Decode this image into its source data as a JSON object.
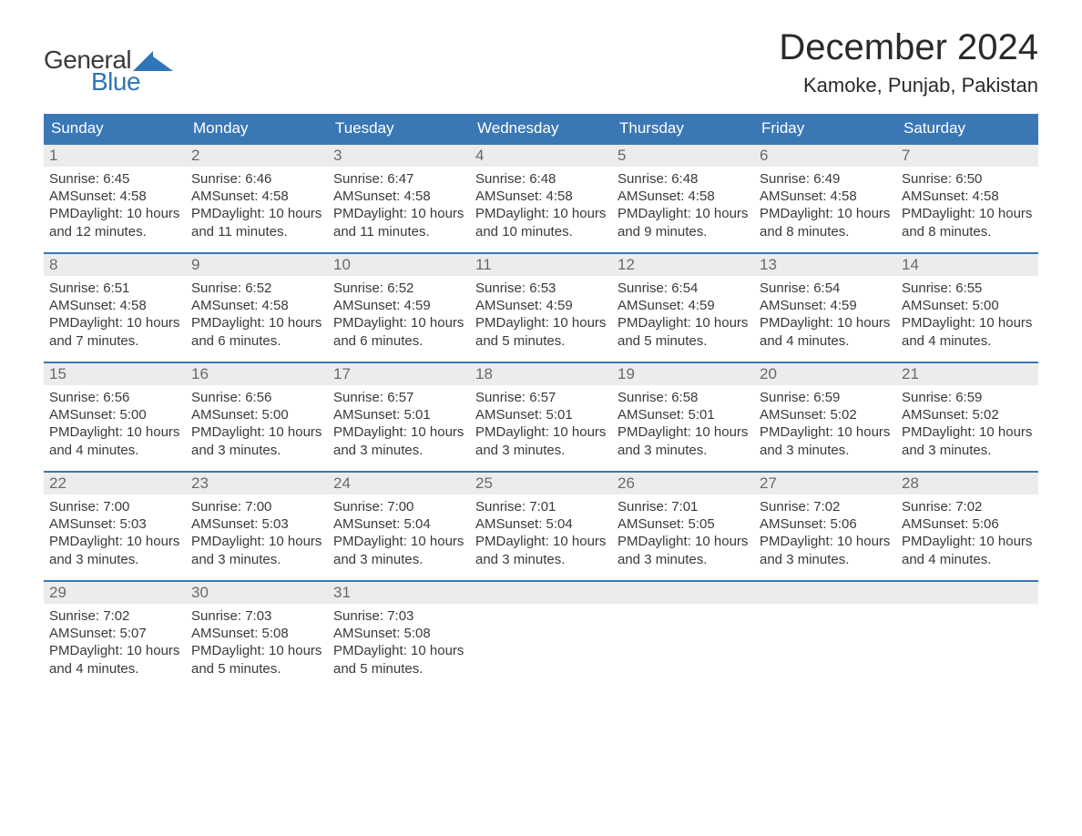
{
  "colors": {
    "header_bg": "#3a78b5",
    "header_fg": "#ffffff",
    "daynum_bg": "#ececec",
    "daynum_fg": "#6a6a6a",
    "text": "#3a3a3a",
    "week_border": "#3a78b5",
    "logo_blue": "#2f76b8",
    "background": "#ffffff"
  },
  "typography": {
    "month_title_size": 40,
    "location_size": 22,
    "day_header_size": 17,
    "daynum_size": 17,
    "body_size": 15,
    "logo_size": 28
  },
  "logo": {
    "line1": "General",
    "line2": "Blue"
  },
  "title": "December 2024",
  "location": "Kamoke, Punjab, Pakistan",
  "day_names": [
    "Sunday",
    "Monday",
    "Tuesday",
    "Wednesday",
    "Thursday",
    "Friday",
    "Saturday"
  ],
  "weeks": [
    [
      {
        "n": "1",
        "sr": "Sunrise: 6:45 AM",
        "ss": "Sunset: 4:58 PM",
        "dl": "Daylight: 10 hours and 12 minutes."
      },
      {
        "n": "2",
        "sr": "Sunrise: 6:46 AM",
        "ss": "Sunset: 4:58 PM",
        "dl": "Daylight: 10 hours and 11 minutes."
      },
      {
        "n": "3",
        "sr": "Sunrise: 6:47 AM",
        "ss": "Sunset: 4:58 PM",
        "dl": "Daylight: 10 hours and 11 minutes."
      },
      {
        "n": "4",
        "sr": "Sunrise: 6:48 AM",
        "ss": "Sunset: 4:58 PM",
        "dl": "Daylight: 10 hours and 10 minutes."
      },
      {
        "n": "5",
        "sr": "Sunrise: 6:48 AM",
        "ss": "Sunset: 4:58 PM",
        "dl": "Daylight: 10 hours and 9 minutes."
      },
      {
        "n": "6",
        "sr": "Sunrise: 6:49 AM",
        "ss": "Sunset: 4:58 PM",
        "dl": "Daylight: 10 hours and 8 minutes."
      },
      {
        "n": "7",
        "sr": "Sunrise: 6:50 AM",
        "ss": "Sunset: 4:58 PM",
        "dl": "Daylight: 10 hours and 8 minutes."
      }
    ],
    [
      {
        "n": "8",
        "sr": "Sunrise: 6:51 AM",
        "ss": "Sunset: 4:58 PM",
        "dl": "Daylight: 10 hours and 7 minutes."
      },
      {
        "n": "9",
        "sr": "Sunrise: 6:52 AM",
        "ss": "Sunset: 4:58 PM",
        "dl": "Daylight: 10 hours and 6 minutes."
      },
      {
        "n": "10",
        "sr": "Sunrise: 6:52 AM",
        "ss": "Sunset: 4:59 PM",
        "dl": "Daylight: 10 hours and 6 minutes."
      },
      {
        "n": "11",
        "sr": "Sunrise: 6:53 AM",
        "ss": "Sunset: 4:59 PM",
        "dl": "Daylight: 10 hours and 5 minutes."
      },
      {
        "n": "12",
        "sr": "Sunrise: 6:54 AM",
        "ss": "Sunset: 4:59 PM",
        "dl": "Daylight: 10 hours and 5 minutes."
      },
      {
        "n": "13",
        "sr": "Sunrise: 6:54 AM",
        "ss": "Sunset: 4:59 PM",
        "dl": "Daylight: 10 hours and 4 minutes."
      },
      {
        "n": "14",
        "sr": "Sunrise: 6:55 AM",
        "ss": "Sunset: 5:00 PM",
        "dl": "Daylight: 10 hours and 4 minutes."
      }
    ],
    [
      {
        "n": "15",
        "sr": "Sunrise: 6:56 AM",
        "ss": "Sunset: 5:00 PM",
        "dl": "Daylight: 10 hours and 4 minutes."
      },
      {
        "n": "16",
        "sr": "Sunrise: 6:56 AM",
        "ss": "Sunset: 5:00 PM",
        "dl": "Daylight: 10 hours and 3 minutes."
      },
      {
        "n": "17",
        "sr": "Sunrise: 6:57 AM",
        "ss": "Sunset: 5:01 PM",
        "dl": "Daylight: 10 hours and 3 minutes."
      },
      {
        "n": "18",
        "sr": "Sunrise: 6:57 AM",
        "ss": "Sunset: 5:01 PM",
        "dl": "Daylight: 10 hours and 3 minutes."
      },
      {
        "n": "19",
        "sr": "Sunrise: 6:58 AM",
        "ss": "Sunset: 5:01 PM",
        "dl": "Daylight: 10 hours and 3 minutes."
      },
      {
        "n": "20",
        "sr": "Sunrise: 6:59 AM",
        "ss": "Sunset: 5:02 PM",
        "dl": "Daylight: 10 hours and 3 minutes."
      },
      {
        "n": "21",
        "sr": "Sunrise: 6:59 AM",
        "ss": "Sunset: 5:02 PM",
        "dl": "Daylight: 10 hours and 3 minutes."
      }
    ],
    [
      {
        "n": "22",
        "sr": "Sunrise: 7:00 AM",
        "ss": "Sunset: 5:03 PM",
        "dl": "Daylight: 10 hours and 3 minutes."
      },
      {
        "n": "23",
        "sr": "Sunrise: 7:00 AM",
        "ss": "Sunset: 5:03 PM",
        "dl": "Daylight: 10 hours and 3 minutes."
      },
      {
        "n": "24",
        "sr": "Sunrise: 7:00 AM",
        "ss": "Sunset: 5:04 PM",
        "dl": "Daylight: 10 hours and 3 minutes."
      },
      {
        "n": "25",
        "sr": "Sunrise: 7:01 AM",
        "ss": "Sunset: 5:04 PM",
        "dl": "Daylight: 10 hours and 3 minutes."
      },
      {
        "n": "26",
        "sr": "Sunrise: 7:01 AM",
        "ss": "Sunset: 5:05 PM",
        "dl": "Daylight: 10 hours and 3 minutes."
      },
      {
        "n": "27",
        "sr": "Sunrise: 7:02 AM",
        "ss": "Sunset: 5:06 PM",
        "dl": "Daylight: 10 hours and 3 minutes."
      },
      {
        "n": "28",
        "sr": "Sunrise: 7:02 AM",
        "ss": "Sunset: 5:06 PM",
        "dl": "Daylight: 10 hours and 4 minutes."
      }
    ],
    [
      {
        "n": "29",
        "sr": "Sunrise: 7:02 AM",
        "ss": "Sunset: 5:07 PM",
        "dl": "Daylight: 10 hours and 4 minutes."
      },
      {
        "n": "30",
        "sr": "Sunrise: 7:03 AM",
        "ss": "Sunset: 5:08 PM",
        "dl": "Daylight: 10 hours and 5 minutes."
      },
      {
        "n": "31",
        "sr": "Sunrise: 7:03 AM",
        "ss": "Sunset: 5:08 PM",
        "dl": "Daylight: 10 hours and 5 minutes."
      },
      null,
      null,
      null,
      null
    ]
  ]
}
